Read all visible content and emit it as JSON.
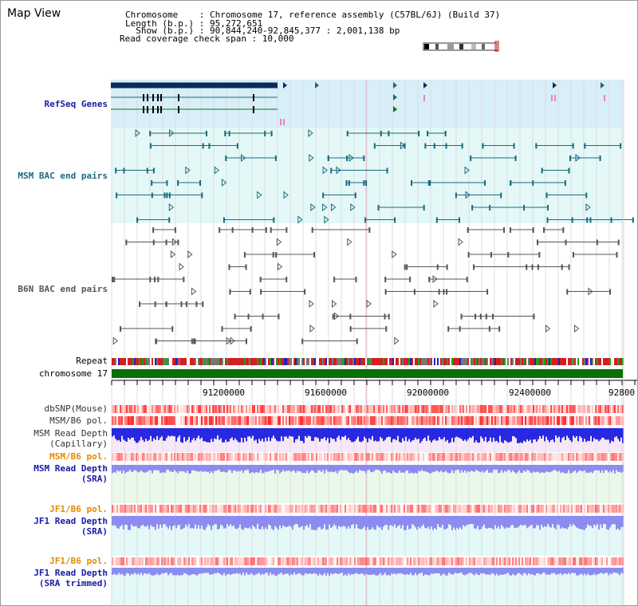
{
  "header": {
    "title": "Map View",
    "info_lines": [
      "Chromosome    : Chromosome 17, reference assembly (C57BL/6J) (Build 37)",
      "Length (b.p.) : 95,272,651",
      "  Show (b.p.) : 90,844,240-92,845,377 : 2,001,138 bp",
      "Read coverage check span : 10,000"
    ]
  },
  "tracks": {
    "refseq": "RefSeq Genes",
    "msm_bac": "MSM BAC end pairs",
    "b6n_bac": "B6N BAC end pairs",
    "repeat": "Repeat",
    "chromosome": "chromosome 17",
    "dbsnp": "dbSNP(Mouse)",
    "msm_b6_pol": "MSM/B6 pol.",
    "msm_read_depth_cap_1": "MSM Read Depth",
    "msm_read_depth_cap_2": "(Capillary)",
    "msm_b6_pol_2": "MSM/B6 pol.",
    "msm_read_depth_sra_1": "MSM Read Depth",
    "msm_read_depth_sra_2": "(SRA)",
    "jf1_b6_pol": "JF1/B6 pol.",
    "jf1_read_depth_sra_1": "JF1 Read Depth",
    "jf1_read_depth_sra_2": "(SRA)",
    "jf1_b6_pol_2": "JF1/B6 pol.",
    "jf1_read_depth_trim_1": "JF1 Read Depth",
    "jf1_read_depth_trim_2": "(SRA trimmed)"
  },
  "axis": {
    "ticks": [
      "91200000",
      "91600000",
      "92000000",
      "92400000",
      "92800"
    ]
  },
  "colors": {
    "refseq_bg": "#d8eef8",
    "msm_bg": "#e4f8f8",
    "teal": "#1a6a80",
    "chromosome": "#0a6e0a",
    "read_depth_dark": "#2828e0",
    "read_depth_light": "#8c8cf0",
    "pol_red": "#f03030"
  }
}
